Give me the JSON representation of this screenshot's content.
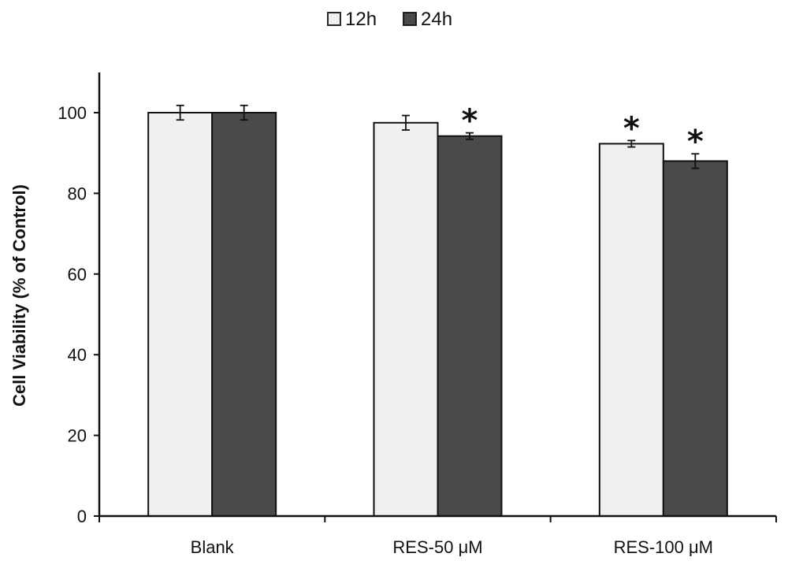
{
  "chart_data": {
    "type": "bar",
    "categories": [
      "Blank",
      "RES-50 μM",
      "RES-100 μM"
    ],
    "series": [
      {
        "name": "12h",
        "values": [
          100,
          97.5,
          92.3
        ],
        "errors": [
          1.8,
          1.8,
          0.8
        ],
        "significant": [
          false,
          false,
          true
        ],
        "color": "#f0f0f0"
      },
      {
        "name": "24h",
        "values": [
          100,
          94.2,
          88
        ],
        "errors": [
          1.8,
          0.8,
          1.8
        ],
        "significant": [
          false,
          true,
          true
        ],
        "color": "#4a4a4a"
      }
    ],
    "significance_marker": "*",
    "title": "",
    "xlabel": "",
    "ylabel": "Cell Viability (% of Control)",
    "ylim": [
      0,
      110
    ],
    "yticks": [
      0,
      20,
      40,
      60,
      80,
      100
    ],
    "grid": false,
    "legend_position": "top"
  }
}
